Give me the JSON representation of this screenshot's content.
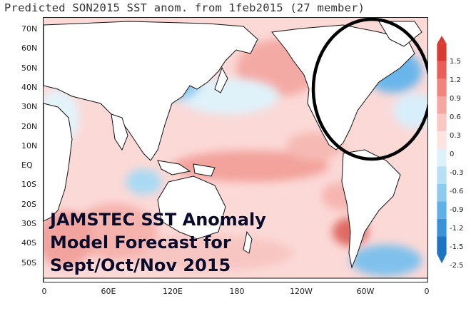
{
  "title": "Predicted SON2015 SST anom. from 1feb2015 (27 member)",
  "latitude_labels": [
    "70N",
    "60N",
    "50N",
    "40N",
    "30N",
    "20N",
    "10N",
    "EQ",
    "10S",
    "20S",
    "30S",
    "40S",
    "50S"
  ],
  "longitude_labels": [
    "0",
    "60E",
    "120E",
    "180",
    "120W",
    "60W",
    "0"
  ],
  "overlay_caption": [
    "JAMSTEC SST Anomaly",
    "Model Forecast for",
    "Sept/Oct/Nov 2015"
  ],
  "colorbar": {
    "labels": [
      "1.5",
      "1.2",
      "0.9",
      "0.6",
      "0.3",
      "0",
      "-0.3",
      "-0.6",
      "-0.9",
      "-1.2",
      "-1.5",
      "-2.5"
    ],
    "warm_colors": [
      "#fde3e1",
      "#fbc7c3",
      "#f7a7a2",
      "#f2847e",
      "#ea5e57",
      "#d93b33"
    ],
    "cool_colors": [
      "#dcf1fa",
      "#b7e0f5",
      "#8ccaef",
      "#5eb0e6",
      "#3a92d8",
      "#1f73c4"
    ]
  },
  "highlight": "circle over North Atlantic / eastern North America"
}
